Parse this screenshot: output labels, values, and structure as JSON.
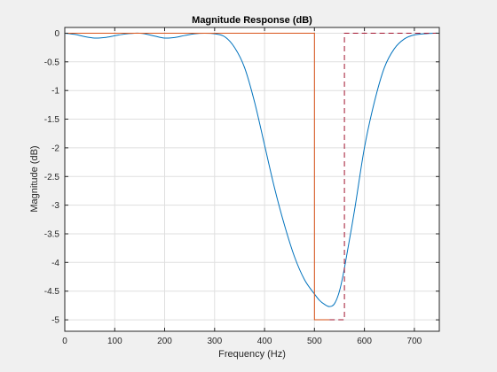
{
  "chart_data": {
    "type": "line",
    "title": "Magnitude Response (dB)",
    "xlabel": "Frequency (Hz)",
    "ylabel": "Magnitude (dB)",
    "xlim": [
      0,
      750
    ],
    "ylim": [
      -5.2,
      0.1
    ],
    "xticks": [
      0,
      100,
      200,
      300,
      400,
      500,
      600,
      700
    ],
    "yticks": [
      0,
      -0.5,
      -1,
      -1.5,
      -2,
      -2.5,
      -3,
      -3.5,
      -4,
      -4.5,
      -5
    ],
    "xtick_labels": [
      "0",
      "100",
      "200",
      "300",
      "400",
      "500",
      "600",
      "700"
    ],
    "ytick_labels": [
      "0",
      "-0.5",
      "-1",
      "-1.5",
      "-2",
      "-2.5",
      "-3",
      "-3.5",
      "-4",
      "-4.5",
      "-5"
    ],
    "grid": true,
    "series": [
      {
        "color": "#0072bd",
        "style": "solid",
        "x": [
          0,
          20,
          40,
          60,
          80,
          100,
          120,
          140,
          150,
          160,
          180,
          200,
          220,
          240,
          260,
          280,
          300,
          320,
          340,
          360,
          380,
          400,
          420,
          440,
          460,
          480,
          500,
          510,
          520,
          530,
          540,
          550,
          560,
          580,
          600,
          620,
          640,
          660,
          680,
          700,
          720,
          740,
          750
        ],
        "y": [
          0,
          -0.02,
          -0.06,
          -0.085,
          -0.075,
          -0.045,
          -0.015,
          0,
          0,
          -0.01,
          -0.05,
          -0.085,
          -0.075,
          -0.04,
          -0.01,
          0,
          -0.01,
          -0.06,
          -0.25,
          -0.6,
          -1.2,
          -1.95,
          -2.7,
          -3.35,
          -3.9,
          -4.3,
          -4.55,
          -4.66,
          -4.73,
          -4.77,
          -4.72,
          -4.5,
          -4.1,
          -3.1,
          -2.0,
          -1.2,
          -0.6,
          -0.27,
          -0.1,
          -0.03,
          -0.01,
          0,
          0
        ]
      },
      {
        "color": "#d95319",
        "style": "solid",
        "x": [
          0,
          500,
          500,
          530,
          530
        ],
        "y": [
          0,
          0,
          -5,
          -5,
          -5
        ]
      },
      {
        "color": "#a2142f",
        "style": "dashed",
        "x": [
          530,
          560,
          560,
          750
        ],
        "y": [
          -5,
          -5,
          0,
          0
        ]
      }
    ]
  }
}
